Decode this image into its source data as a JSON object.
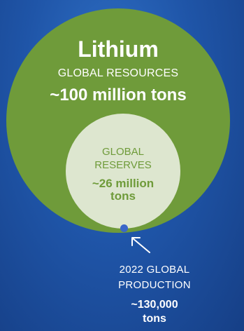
{
  "resources": {
    "title": "Lithium",
    "label": "GLOBAL RESOURCES",
    "value": "~100 million tons"
  },
  "reserves": {
    "label_line1": "GLOBAL",
    "label_line2": "RESERVES",
    "value_line1": "~26 million",
    "value_line2": "tons"
  },
  "production": {
    "label_line1": "2022 GLOBAL",
    "label_line2": "PRODUCTION",
    "value_line1": "~130,000",
    "value_line2": "tons"
  },
  "colors": {
    "background": "#1f55a8",
    "resources_circle": "#6f9b3a",
    "reserves_circle": "#dde6cf",
    "production_dot": "#3a67c9",
    "text_light": "#ffffff",
    "text_green": "#6f9b3a"
  }
}
